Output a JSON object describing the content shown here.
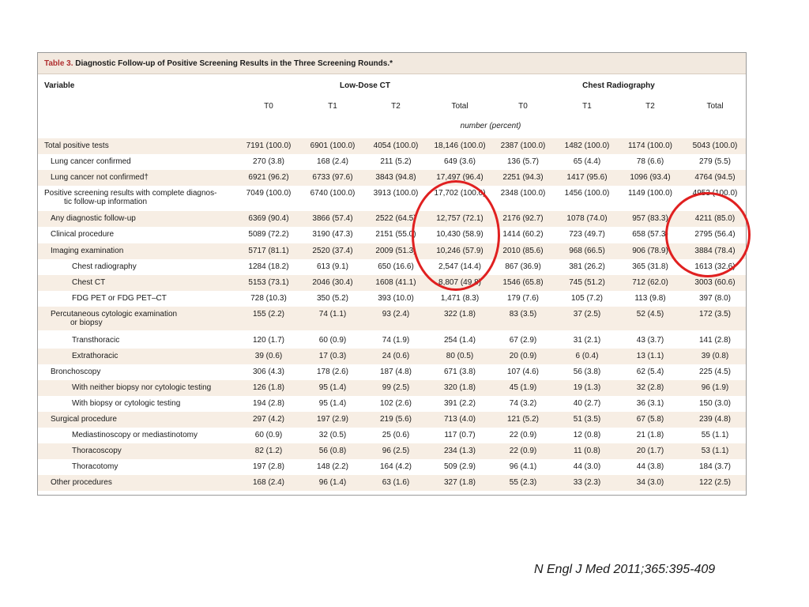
{
  "table": {
    "title_number": "Table 3.",
    "title_text": "Diagnostic Follow-up of Positive Screening Results in the Three Screening Rounds.*",
    "variable_header": "Variable",
    "group_headers": [
      "Low-Dose CT",
      "Chest Radiography"
    ],
    "column_headers": [
      "T0",
      "T1",
      "T2",
      "Total",
      "T0",
      "T1",
      "T2",
      "Total"
    ],
    "units_label": "number (percent)",
    "rows": [
      {
        "label": "Total positive tests",
        "indent": 0,
        "values": [
          "7191 (100.0)",
          "6901 (100.0)",
          "4054 (100.0)",
          "18,146 (100.0)",
          "2387 (100.0)",
          "1482 (100.0)",
          "1174 (100.0)",
          "5043 (100.0)"
        ]
      },
      {
        "label": "Lung cancer confirmed",
        "indent": 1,
        "values": [
          "270 (3.8)",
          "168 (2.4)",
          "211 (5.2)",
          "649 (3.6)",
          "136 (5.7)",
          "65 (4.4)",
          "78 (6.6)",
          "279 (5.5)"
        ]
      },
      {
        "label": "Lung cancer not confirmed†",
        "indent": 1,
        "values": [
          "6921 (96.2)",
          "6733 (97.6)",
          "3843 (94.8)",
          "17,497 (96.4)",
          "2251 (94.3)",
          "1417 (95.6)",
          "1096 (93.4)",
          "4764 (94.5)"
        ]
      },
      {
        "label": "Positive screening results with complete diagnos-",
        "label2": "tic follow-up information",
        "indent": 0,
        "values": [
          "7049 (100.0)",
          "6740 (100.0)",
          "3913 (100.0)",
          "17,702 (100.0)",
          "2348 (100.0)",
          "1456 (100.0)",
          "1149 (100.0)",
          "4953 (100.0)"
        ]
      },
      {
        "label": "Any diagnostic follow-up",
        "indent": 1,
        "values": [
          "6369 (90.4)",
          "3866 (57.4)",
          "2522 (64.5)",
          "12,757 (72.1)",
          "2176 (92.7)",
          "1078 (74.0)",
          "957 (83.3)",
          "4211 (85.0)"
        ]
      },
      {
        "label": "Clinical procedure",
        "indent": 1,
        "values": [
          "5089 (72.2)",
          "3190 (47.3)",
          "2151 (55.0)",
          "10,430 (58.9)",
          "1414 (60.2)",
          "723 (49.7)",
          "658 (57.3)",
          "2795 (56.4)"
        ]
      },
      {
        "label": "Imaging examination",
        "indent": 1,
        "values": [
          "5717 (81.1)",
          "2520 (37.4)",
          "2009 (51.3)",
          "10,246 (57.9)",
          "2010 (85.6)",
          "968 (66.5)",
          "906 (78.9)",
          "3884 (78.4)"
        ]
      },
      {
        "label": "Chest radiography",
        "indent": 2,
        "values": [
          "1284 (18.2)",
          "613 (9.1)",
          "650 (16.6)",
          "2,547 (14.4)",
          "867 (36.9)",
          "381 (26.2)",
          "365 (31.8)",
          "1613 (32.6)"
        ]
      },
      {
        "label": "Chest CT",
        "indent": 2,
        "values": [
          "5153 (73.1)",
          "2046 (30.4)",
          "1608 (41.1)",
          "8,807 (49.8)",
          "1546 (65.8)",
          "745 (51.2)",
          "712 (62.0)",
          "3003 (60.6)"
        ]
      },
      {
        "label": "FDG PET or FDG PET–CT",
        "indent": 2,
        "values": [
          "728 (10.3)",
          "350 (5.2)",
          "393 (10.0)",
          "1,471 (8.3)",
          "179 (7.6)",
          "105 (7.2)",
          "113 (9.8)",
          "397 (8.0)"
        ]
      },
      {
        "label": "Percutaneous cytologic examination",
        "label2": "or biopsy",
        "indent": 1,
        "values": [
          "155 (2.2)",
          "74 (1.1)",
          "93 (2.4)",
          "322 (1.8)",
          "83 (3.5)",
          "37 (2.5)",
          "52 (4.5)",
          "172 (3.5)"
        ]
      },
      {
        "label": "Transthoracic",
        "indent": 2,
        "values": [
          "120 (1.7)",
          "60 (0.9)",
          "74 (1.9)",
          "254 (1.4)",
          "67 (2.9)",
          "31 (2.1)",
          "43 (3.7)",
          "141 (2.8)"
        ]
      },
      {
        "label": "Extrathoracic",
        "indent": 2,
        "values": [
          "39 (0.6)",
          "17 (0.3)",
          "24 (0.6)",
          "80 (0.5)",
          "20 (0.9)",
          "6 (0.4)",
          "13 (1.1)",
          "39 (0.8)"
        ]
      },
      {
        "label": "Bronchoscopy",
        "indent": 1,
        "values": [
          "306 (4.3)",
          "178 (2.6)",
          "187 (4.8)",
          "671 (3.8)",
          "107 (4.6)",
          "56 (3.8)",
          "62 (5.4)",
          "225 (4.5)"
        ]
      },
      {
        "label": "With neither biopsy nor cytologic testing",
        "indent": 2,
        "values": [
          "126 (1.8)",
          "95 (1.4)",
          "99 (2.5)",
          "320 (1.8)",
          "45 (1.9)",
          "19 (1.3)",
          "32 (2.8)",
          "96 (1.9)"
        ]
      },
      {
        "label": "With biopsy or cytologic testing",
        "indent": 2,
        "values": [
          "194 (2.8)",
          "95 (1.4)",
          "102 (2.6)",
          "391 (2.2)",
          "74 (3.2)",
          "40 (2.7)",
          "36 (3.1)",
          "150 (3.0)"
        ]
      },
      {
        "label": "Surgical procedure",
        "indent": 1,
        "values": [
          "297 (4.2)",
          "197 (2.9)",
          "219 (5.6)",
          "713 (4.0)",
          "121 (5.2)",
          "51 (3.5)",
          "67 (5.8)",
          "239 (4.8)"
        ]
      },
      {
        "label": "Mediastinoscopy or mediastinotomy",
        "indent": 2,
        "values": [
          "60 (0.9)",
          "32 (0.5)",
          "25 (0.6)",
          "117 (0.7)",
          "22 (0.9)",
          "12 (0.8)",
          "21 (1.8)",
          "55 (1.1)"
        ]
      },
      {
        "label": "Thoracoscopy",
        "indent": 2,
        "values": [
          "82 (1.2)",
          "56 (0.8)",
          "96 (2.5)",
          "234 (1.3)",
          "22 (0.9)",
          "11 (0.8)",
          "20 (1.7)",
          "53 (1.1)"
        ]
      },
      {
        "label": "Thoracotomy",
        "indent": 2,
        "values": [
          "197 (2.8)",
          "148 (2.2)",
          "164 (4.2)",
          "509 (2.9)",
          "96 (4.1)",
          "44 (3.0)",
          "44 (3.8)",
          "184 (3.7)"
        ]
      },
      {
        "label": "Other procedures",
        "indent": 1,
        "values": [
          "168 (2.4)",
          "96 (1.4)",
          "63 (1.6)",
          "327 (1.8)",
          "55 (2.3)",
          "33 (2.3)",
          "34 (3.0)",
          "122 (2.5)"
        ]
      }
    ]
  },
  "annotations": {
    "ring_color": "#e02020",
    "circled_columns": [
      "Low-Dose CT Total",
      "Chest Radiography Total"
    ]
  },
  "citation": "N Engl J Med 2011;365:395-409"
}
